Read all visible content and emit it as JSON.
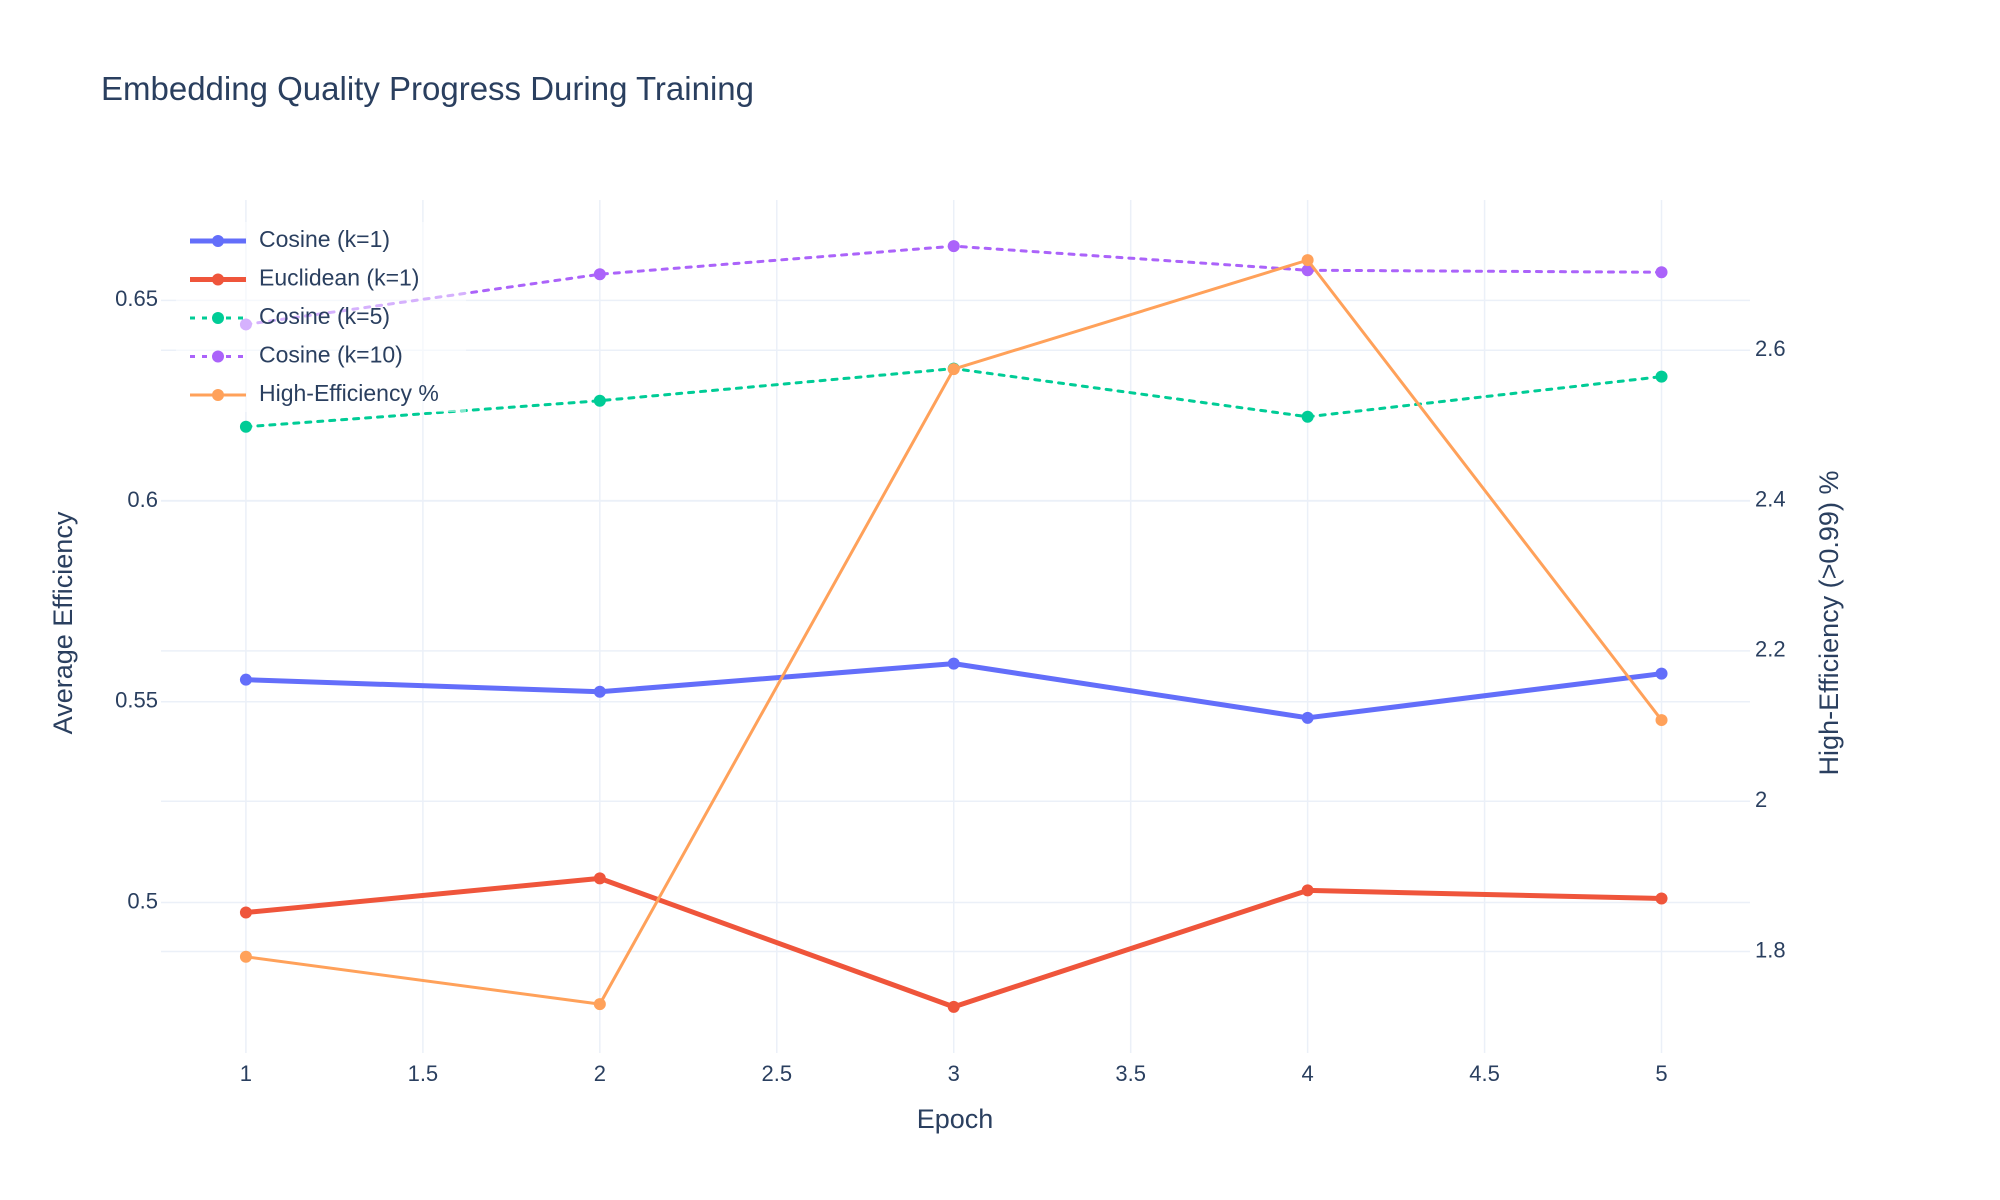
{
  "chart_data": {
    "type": "line",
    "title": "Embedding Quality Progress During Training",
    "xlabel": "Epoch",
    "ylabel": "Average Efficiency",
    "y2label": "High-Efficiency (>0.99) %",
    "xlim": [
      0.76,
      5.25
    ],
    "ylim": [
      0.4625,
      0.675
    ],
    "y2lim": [
      1.665,
      2.8
    ],
    "x_ticks": [
      1,
      1.5,
      2,
      2.5,
      3,
      3.5,
      4,
      4.5,
      5
    ],
    "x_tick_labels": [
      "1",
      "1.5",
      "2",
      "2.5",
      "3",
      "3.5",
      "4",
      "4.5",
      "5"
    ],
    "y_ticks": [
      0.5,
      0.55,
      0.6,
      0.65
    ],
    "y_tick_labels": [
      "0.5",
      "0.55",
      "0.6",
      "0.65"
    ],
    "y2_ticks": [
      1.8,
      2.0,
      2.2,
      2.4,
      2.6
    ],
    "y2_tick_labels": [
      "1.8",
      "2",
      "2.2",
      "2.4",
      "2.6"
    ],
    "grid": true,
    "legend_position": "top-left",
    "x": [
      1,
      2,
      3,
      4,
      5
    ],
    "series": [
      {
        "name": "Cosine (k=1)",
        "axis": "y",
        "values": [
          0.5555,
          0.5525,
          0.5595,
          0.546,
          0.557
        ],
        "color": "#636efa",
        "dash": "solid",
        "width": 5
      },
      {
        "name": "Euclidean (k=1)",
        "axis": "y",
        "values": [
          0.4975,
          0.506,
          0.474,
          0.503,
          0.501
        ],
        "color": "#ef553b",
        "dash": "solid",
        "width": 5
      },
      {
        "name": "Cosine (k=5)",
        "axis": "y",
        "values": [
          0.6185,
          0.625,
          0.633,
          0.621,
          0.631
        ],
        "color": "#00cc96",
        "dash": "dot",
        "width": 3
      },
      {
        "name": "Cosine (k=10)",
        "axis": "y",
        "values": [
          0.644,
          0.6565,
          0.6635,
          0.6575,
          0.657
        ],
        "color": "#ab63fa",
        "dash": "dot",
        "width": 3
      },
      {
        "name": "High-Efficiency %",
        "axis": "y2",
        "values": [
          1.793,
          1.73,
          2.575,
          2.72,
          2.108
        ],
        "color": "#ffa15a",
        "dash": "solid",
        "width": 3
      }
    ]
  }
}
